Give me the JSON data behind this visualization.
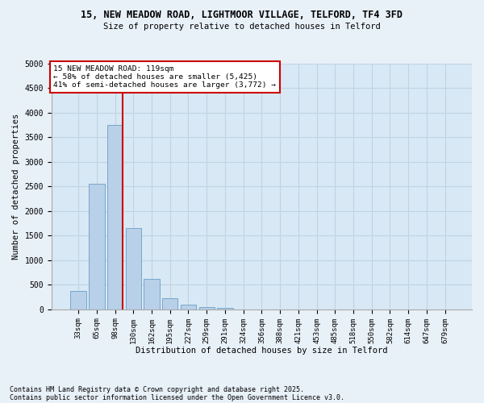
{
  "title1": "15, NEW MEADOW ROAD, LIGHTMOOR VILLAGE, TELFORD, TF4 3FD",
  "title2": "Size of property relative to detached houses in Telford",
  "xlabel": "Distribution of detached houses by size in Telford",
  "ylabel": "Number of detached properties",
  "categories": [
    "33sqm",
    "65sqm",
    "98sqm",
    "130sqm",
    "162sqm",
    "195sqm",
    "227sqm",
    "259sqm",
    "291sqm",
    "324sqm",
    "356sqm",
    "388sqm",
    "421sqm",
    "453sqm",
    "485sqm",
    "518sqm",
    "550sqm",
    "582sqm",
    "614sqm",
    "647sqm",
    "679sqm"
  ],
  "values": [
    375,
    2550,
    3750,
    1650,
    620,
    235,
    90,
    45,
    35,
    0,
    0,
    0,
    0,
    0,
    0,
    0,
    0,
    0,
    0,
    0,
    0
  ],
  "bar_color": "#b8d0e8",
  "bar_edge_color": "#6a9fc8",
  "vline_x_index": 2,
  "vline_color": "#cc0000",
  "annotation_text": "15 NEW MEADOW ROAD: 119sqm\n← 58% of detached houses are smaller (5,425)\n41% of semi-detached houses are larger (3,772) →",
  "annotation_box_color": "#ffffff",
  "annotation_box_edge_color": "#cc0000",
  "ylim": [
    0,
    5000
  ],
  "yticks": [
    0,
    500,
    1000,
    1500,
    2000,
    2500,
    3000,
    3500,
    4000,
    4500,
    5000
  ],
  "grid_color": "#c0d4e4",
  "bg_color": "#d8e8f4",
  "fig_bg_color": "#e8f0f8",
  "footnote1": "Contains HM Land Registry data © Crown copyright and database right 2025.",
  "footnote2": "Contains public sector information licensed under the Open Government Licence v3.0."
}
